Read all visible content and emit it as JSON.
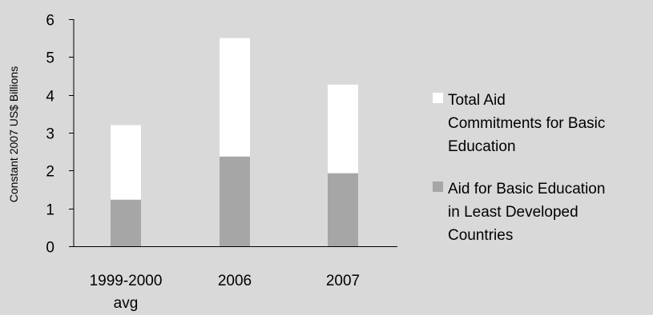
{
  "chart_data": {
    "type": "bar",
    "stacked": false,
    "overlapping": true,
    "categories": [
      "1999-2000 avg",
      "2006",
      "2007"
    ],
    "category_lines": [
      [
        "1999-2000",
        "avg"
      ],
      [
        "2006"
      ],
      [
        "2007"
      ]
    ],
    "series": [
      {
        "name": "Total Aid Commitments for Basic Education",
        "legend_lines": [
          "Total Aid",
          "Commitments for Basic",
          "Education"
        ],
        "values": [
          3.2,
          5.5,
          4.27
        ],
        "color": "#ffffff"
      },
      {
        "name": "Aid for Basic Education in Least Developed Countries",
        "legend_lines": [
          "Aid for Basic Education",
          "in Least Developed",
          "Countries"
        ],
        "values": [
          1.23,
          2.37,
          1.93
        ],
        "color": "#a6a6a6"
      }
    ],
    "title": "",
    "xlabel": "",
    "ylabel": "Constant 2007 US$ Billions",
    "ylim": [
      0,
      6
    ],
    "yticks": [
      "0",
      "1",
      "2",
      "3",
      "4",
      "5",
      "6"
    ],
    "grid": false,
    "legend_position": "right",
    "background": "#d9d9d9"
  }
}
